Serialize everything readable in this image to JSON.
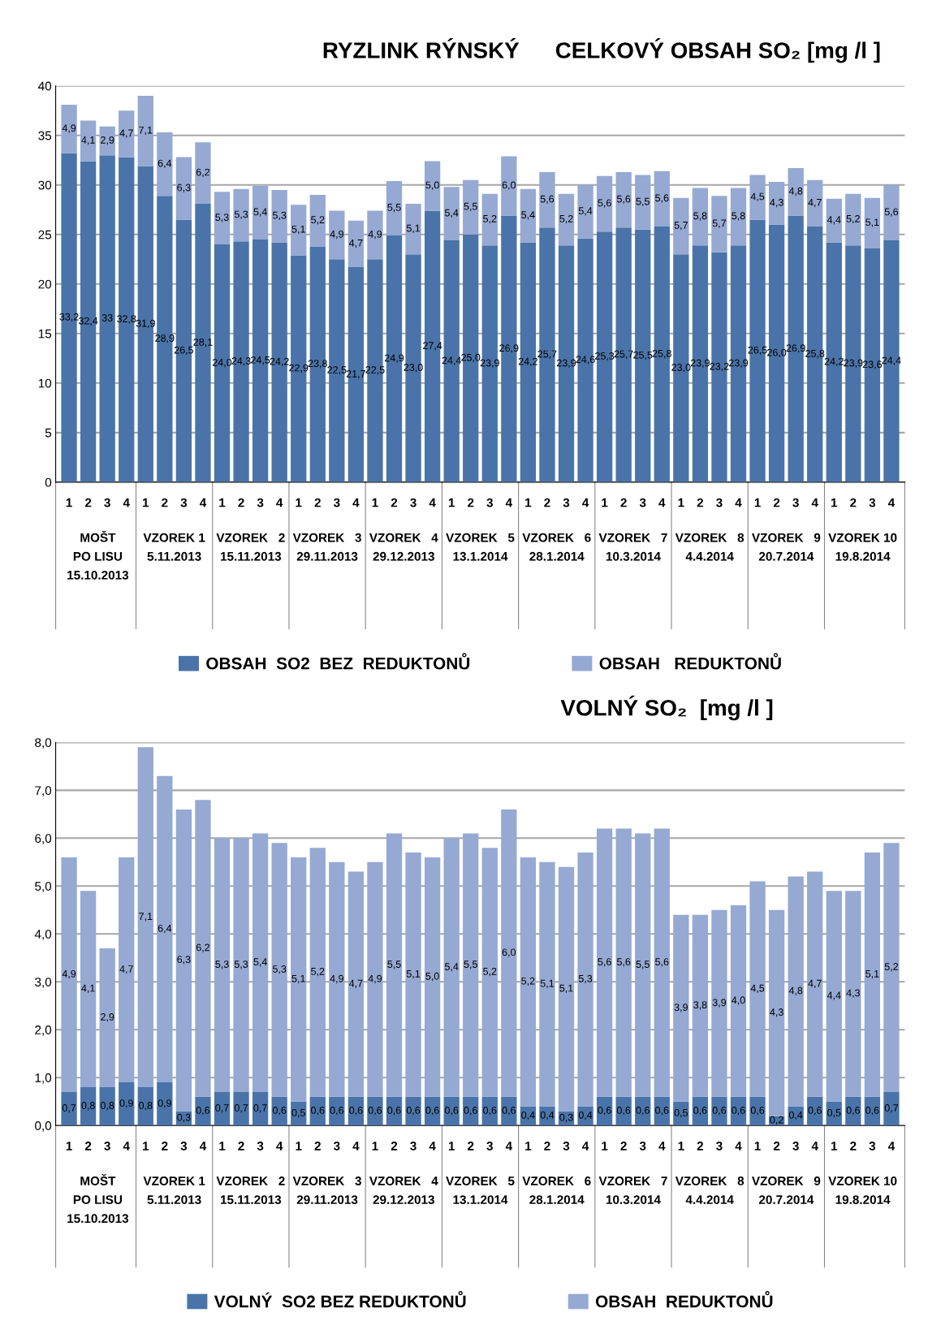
{
  "chart_data": [
    {
      "type": "bar",
      "stacked": true,
      "title": "RYZLINK RÝNSKÝ",
      "subtitle": "CELKOVÝ OBSAH SO₂ [mg /l ]",
      "categories": [
        "1",
        "2",
        "3",
        "4",
        "1",
        "2",
        "3",
        "4",
        "1",
        "2",
        "3",
        "4",
        "1",
        "2",
        "3",
        "4",
        "1",
        "2",
        "3",
        "4",
        "1",
        "2",
        "3",
        "4",
        "1",
        "2",
        "3",
        "4",
        "1",
        "2",
        "3",
        "4",
        "1",
        "2",
        "3",
        "4",
        "1",
        "2",
        "3",
        "4",
        "1",
        "2",
        "3",
        "4"
      ],
      "annotations": [
        "MOŠT\nPO LISU\n15.10.2013",
        "VZOREK 1\n5.11.2013",
        "VZOREK   2\n15.11.2013",
        "VZOREK   3\n29.11.2013",
        "VZOREK   4\n29.12.2013",
        "VZOREK   5\n13.1.2014",
        "VZOREK   6\n28.1.2014",
        "VZOREK   7\n10.3.2014",
        "VZOREK   8\n4.4.2014",
        "VZOREK   9\n20.7.2014",
        "VZOREK 10\n19.8.2014"
      ],
      "series": [
        {
          "name": "OBSAH  SO2  BEZ  REDUKTONŮ",
          "color": "#4a74a9",
          "values": [
            33.2,
            32.4,
            33,
            32.8,
            31.9,
            28.9,
            26.5,
            28.1,
            24.0,
            24.3,
            24.5,
            24.2,
            22.9,
            23.8,
            22.5,
            21.7,
            22.5,
            24.9,
            23.0,
            27.4,
            24.4,
            25.0,
            23.9,
            26.9,
            24.2,
            25.7,
            23.9,
            24.6,
            25.3,
            25.7,
            25.5,
            25.8,
            23.0,
            23.9,
            23.2,
            23.9,
            26.5,
            26.0,
            26.9,
            25.8,
            24.2,
            23.9,
            23.6,
            24.4
          ],
          "value_labels": [
            "33,2",
            "32,4",
            "33",
            "32,8",
            "31,9",
            "28,9",
            "26,5",
            "28,1",
            "24,0",
            "24,3",
            "24,5",
            "24,2",
            "22,9",
            "23,8",
            "22,5",
            "21,7",
            "22,5",
            "24,9",
            "23,0",
            "27,4",
            "24,4",
            "25,0",
            "23,9",
            "26,9",
            "24,2",
            "25,7",
            "23,9",
            "24,6",
            "25,3",
            "25,7",
            "25,5",
            "25,8",
            "23,0",
            "23,9",
            "23,2",
            "23,9",
            "26,5",
            "26,0",
            "26,9",
            "25,8",
            "24,2",
            "23,9",
            "23,6",
            "24,4"
          ]
        },
        {
          "name": "OBSAH   REDUKTONŮ",
          "color": "#95a9d3",
          "values": [
            4.9,
            4.1,
            2.9,
            4.7,
            7.1,
            6.4,
            6.3,
            6.2,
            5.3,
            5.3,
            5.4,
            5.3,
            5.1,
            5.2,
            4.9,
            4.7,
            4.9,
            5.5,
            5.1,
            5.0,
            5.4,
            5.5,
            5.2,
            6.0,
            5.4,
            5.6,
            5.2,
            5.4,
            5.6,
            5.6,
            5.5,
            5.6,
            5.7,
            5.8,
            5.7,
            5.8,
            4.5,
            4.3,
            4.8,
            4.7,
            4.4,
            5.2,
            5.1,
            5.6
          ],
          "value_labels": [
            "4,9",
            "4,1",
            "2,9",
            "4,7",
            "7,1",
            "6,4",
            "6,3",
            "6,2",
            "5,3",
            "5,3",
            "5,4",
            "5,3",
            "5,1",
            "5,2",
            "4,9",
            "4,7",
            "4,9",
            "5,5",
            "5,1",
            "5,0",
            "5,4",
            "5,5",
            "5,2",
            "6,0",
            "5,4",
            "5,6",
            "5,2",
            "5,4",
            "5,6",
            "5,6",
            "5,5",
            "5,6",
            "5,7",
            "5,8",
            "5,7",
            "5,8",
            "4,5",
            "4,3",
            "4,8",
            "4,7",
            "4,4",
            "5,2",
            "5,1",
            "5,6"
          ]
        }
      ],
      "ylim": [
        0,
        40
      ],
      "yticks": [
        0,
        5,
        10,
        15,
        20,
        25,
        30,
        35,
        40
      ],
      "grid": "y",
      "legend": "bottom"
    },
    {
      "type": "bar",
      "stacked": true,
      "title": "VOLNÝ SO₂  [mg /l ]",
      "categories": [
        "1",
        "2",
        "3",
        "4",
        "1",
        "2",
        "3",
        "4",
        "1",
        "2",
        "3",
        "4",
        "1",
        "2",
        "3",
        "4",
        "1",
        "2",
        "3",
        "4",
        "1",
        "2",
        "3",
        "4",
        "1",
        "2",
        "3",
        "4",
        "1",
        "2",
        "3",
        "4",
        "1",
        "2",
        "3",
        "4",
        "1",
        "2",
        "3",
        "4",
        "1",
        "2",
        "3",
        "4"
      ],
      "annotations": [
        "MOŠT\nPO LISU\n15.10.2013",
        "VZOREK 1\n5.11.2013",
        "VZOREK   2\n15.11.2013",
        "VZOREK   3\n29.11.2013",
        "VZOREK   4\n29.12.2013",
        "VZOREK   5\n13.1.2014",
        "VZOREK   6\n28.1.2014",
        "VZOREK   7\n10.3.2014",
        "VZOREK   8\n4.4.2014",
        "VZOREK   9\n20.7.2014",
        "VZOREK 10\n19.8.2014"
      ],
      "series": [
        {
          "name": "VOLNÝ  SO2 BEZ REDUKTONŮ",
          "color": "#4a74a9",
          "values": [
            0.7,
            0.8,
            0.8,
            0.9,
            0.8,
            0.9,
            0.3,
            0.6,
            0.7,
            0.7,
            0.7,
            0.6,
            0.5,
            0.6,
            0.6,
            0.6,
            0.6,
            0.6,
            0.6,
            0.6,
            0.6,
            0.6,
            0.6,
            0.6,
            0.4,
            0.4,
            0.3,
            0.4,
            0.6,
            0.6,
            0.6,
            0.6,
            0.5,
            0.6,
            0.6,
            0.6,
            0.6,
            0.2,
            0.4,
            0.6,
            0.5,
            0.6,
            0.6,
            0.7
          ],
          "value_labels": [
            "0,7",
            "0,8",
            "0,8",
            "0,9",
            "0,8",
            "0,9",
            "0,3",
            "0,6",
            "0,7",
            "0,7",
            "0,7",
            "0,6",
            "0,5",
            "0,6",
            "0,6",
            "0,6",
            "0,6",
            "0,6",
            "0,6",
            "0,6",
            "0,6",
            "0,6",
            "0,6",
            "0,6",
            "0,4",
            "0,4",
            "0,3",
            "0,4",
            "0,6",
            "0,6",
            "0,6",
            "0,6",
            "0,5",
            "0,6",
            "0,6",
            "0,6",
            "0,6",
            "0,2",
            "0,4",
            "0,6",
            "0,5",
            "0,6",
            "0,6",
            "0,7"
          ]
        },
        {
          "name": "OBSAH  REDUKTONŮ",
          "color": "#95a9d3",
          "values": [
            4.9,
            4.1,
            2.9,
            4.7,
            7.1,
            6.4,
            6.3,
            6.2,
            5.3,
            5.3,
            5.4,
            5.3,
            5.1,
            5.2,
            4.9,
            4.7,
            4.9,
            5.5,
            5.1,
            5.0,
            5.4,
            5.5,
            5.2,
            6.0,
            5.2,
            5.1,
            5.1,
            5.3,
            5.6,
            5.6,
            5.5,
            5.6,
            3.9,
            3.8,
            3.9,
            4.0,
            4.5,
            4.3,
            4.8,
            4.7,
            4.4,
            4.3,
            5.1,
            5.2
          ],
          "value_labels": [
            "4,9",
            "4,1",
            "2,9",
            "4,7",
            "7,1",
            "6,4",
            "6,3",
            "6,2",
            "5,3",
            "5,3",
            "5,4",
            "5,3",
            "5,1",
            "5,2",
            "4,9",
            "4,7",
            "4,9",
            "5,5",
            "5,1",
            "5,0",
            "5,4",
            "5,5",
            "5,2",
            "6,0",
            "5,2",
            "5,1",
            "5,1",
            "5,3",
            "5,6",
            "5,6",
            "5,5",
            "5,6",
            "3,9",
            "3,8",
            "3,9",
            "4,0",
            "4,5",
            "4,3",
            "4,8",
            "4,7",
            "4,4",
            "4,3",
            "5,1",
            "5,2"
          ]
        }
      ],
      "ylim": [
        0,
        8
      ],
      "yticks": [
        {
          "value": 0,
          "label": "0,0"
        },
        {
          "value": 1,
          "label": "1,0"
        },
        {
          "value": 2,
          "label": "2,0"
        },
        {
          "value": 3,
          "label": "3,0"
        },
        {
          "value": 4,
          "label": "4,0"
        },
        {
          "value": 5,
          "label": "5,0"
        },
        {
          "value": 6,
          "label": "6,0"
        },
        {
          "value": 7,
          "label": "7,0"
        },
        {
          "value": 8,
          "label": "8,0"
        }
      ],
      "grid": "y",
      "legend": "bottom"
    }
  ]
}
